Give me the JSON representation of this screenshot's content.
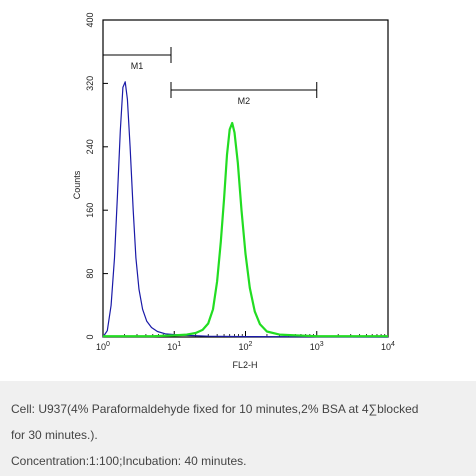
{
  "chart_data": {
    "type": "histogram",
    "x_scale": "log",
    "xlim": [
      1,
      10000
    ],
    "ylim": [
      0,
      400
    ],
    "xlabel": "FL2-H",
    "ylabel": "Counts",
    "x_ticks": [
      {
        "value": 1,
        "base": "10",
        "exp": "0"
      },
      {
        "value": 10,
        "base": "10",
        "exp": "1"
      },
      {
        "value": 100,
        "base": "10",
        "exp": "2"
      },
      {
        "value": 1000,
        "base": "10",
        "exp": "3"
      },
      {
        "value": 10000,
        "base": "10",
        "exp": "4"
      }
    ],
    "y_ticks": [
      {
        "value": 0,
        "label": "0"
      },
      {
        "value": 80,
        "label": "80"
      },
      {
        "value": 160,
        "label": "160"
      },
      {
        "value": 240,
        "label": "240"
      },
      {
        "value": 320,
        "label": "320"
      },
      {
        "value": 400,
        "label": "400"
      }
    ],
    "series": [
      {
        "color": "#1a1aa8",
        "points": [
          [
            1.0,
            0
          ],
          [
            1.15,
            8
          ],
          [
            1.3,
            40
          ],
          [
            1.45,
            100
          ],
          [
            1.6,
            180
          ],
          [
            1.75,
            260
          ],
          [
            1.9,
            315
          ],
          [
            2.05,
            322
          ],
          [
            2.2,
            300
          ],
          [
            2.4,
            240
          ],
          [
            2.65,
            160
          ],
          [
            2.9,
            100
          ],
          [
            3.2,
            60
          ],
          [
            3.6,
            35
          ],
          [
            4.1,
            20
          ],
          [
            4.8,
            12
          ],
          [
            5.8,
            7
          ],
          [
            7.5,
            4
          ],
          [
            10,
            3
          ],
          [
            15,
            2
          ],
          [
            30,
            1
          ],
          [
            100,
            0.5
          ],
          [
            1000,
            0.2
          ],
          [
            10000,
            0
          ]
        ]
      },
      {
        "color": "#22dd22",
        "points": [
          [
            1.0,
            1
          ],
          [
            5,
            1
          ],
          [
            10,
            2
          ],
          [
            15,
            3
          ],
          [
            20,
            5
          ],
          [
            25,
            9
          ],
          [
            30,
            17
          ],
          [
            35,
            35
          ],
          [
            40,
            70
          ],
          [
            45,
            120
          ],
          [
            50,
            175
          ],
          [
            55,
            230
          ],
          [
            60,
            262
          ],
          [
            65,
            270
          ],
          [
            70,
            258
          ],
          [
            78,
            220
          ],
          [
            88,
            160
          ],
          [
            100,
            105
          ],
          [
            115,
            62
          ],
          [
            135,
            32
          ],
          [
            160,
            16
          ],
          [
            200,
            7
          ],
          [
            300,
            3
          ],
          [
            500,
            2
          ],
          [
            1000,
            1
          ],
          [
            10000,
            1
          ]
        ]
      }
    ],
    "markers": [
      {
        "label": "M1",
        "start": 1,
        "end": 9
      },
      {
        "label": "M2",
        "start": 9,
        "end": 1000
      }
    ]
  },
  "caption": {
    "line1": "Cell: U937(4% Paraformaldehyde fixed for 10 minutes,2% BSA at 4∑blocked",
    "line2": "for 30 minutes.).",
    "line3": "Concentration:1:100;Incubation: 40 minutes."
  }
}
